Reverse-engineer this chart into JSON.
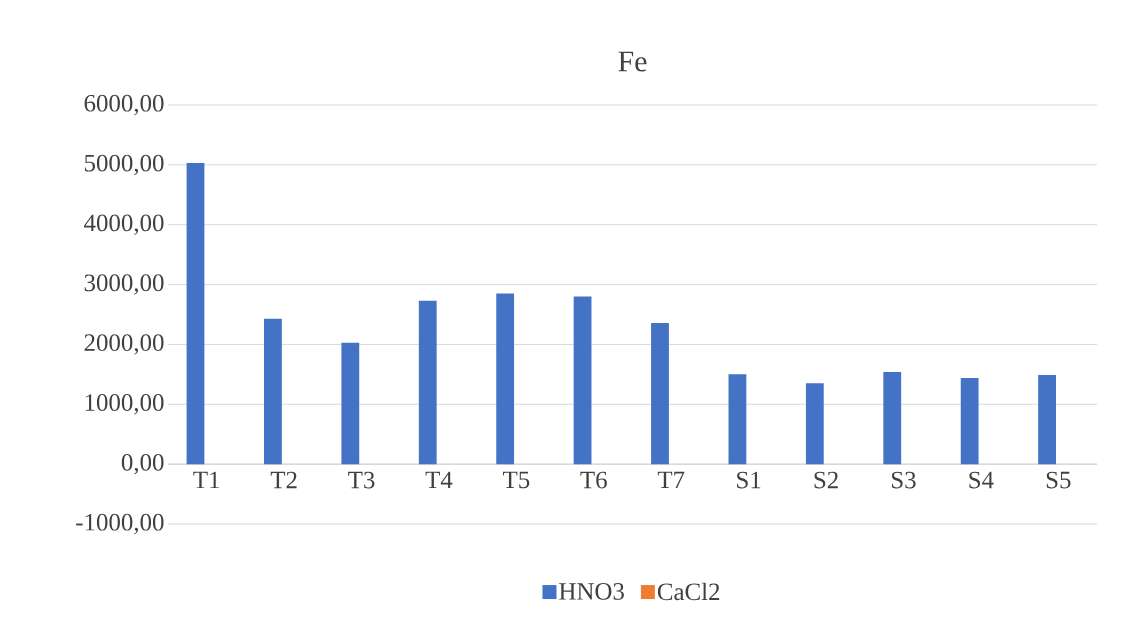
{
  "chart_data": {
    "type": "bar",
    "title": "Fe",
    "categories": [
      "T1",
      "T2",
      "T3",
      "T4",
      "T5",
      "T6",
      "T7",
      "S1",
      "S2",
      "S3",
      "S4",
      "S5"
    ],
    "series": [
      {
        "name": "HNO3",
        "color": "#4472c4",
        "values": [
          5030,
          2430,
          2030,
          2730,
          2850,
          2800,
          2360,
          1500,
          1350,
          1540,
          1440,
          1490
        ]
      },
      {
        "name": "CaCl2",
        "color": "#ed7d31",
        "values": [
          null,
          null,
          null,
          null,
          null,
          null,
          null,
          null,
          null,
          null,
          null,
          null
        ]
      }
    ],
    "ylim": [
      -1000,
      6000
    ],
    "yticks": [
      {
        "value": -1000,
        "label": "-1000,00"
      },
      {
        "value": 0,
        "label": "0,00"
      },
      {
        "value": 1000,
        "label": "1000,00"
      },
      {
        "value": 2000,
        "label": "2000,00"
      },
      {
        "value": 3000,
        "label": "3000,00"
      },
      {
        "value": 4000,
        "label": "4000,00"
      },
      {
        "value": 5000,
        "label": "5000,00"
      },
      {
        "value": 6000,
        "label": "6000,00"
      }
    ],
    "grid": "y",
    "legend": "bottom"
  }
}
